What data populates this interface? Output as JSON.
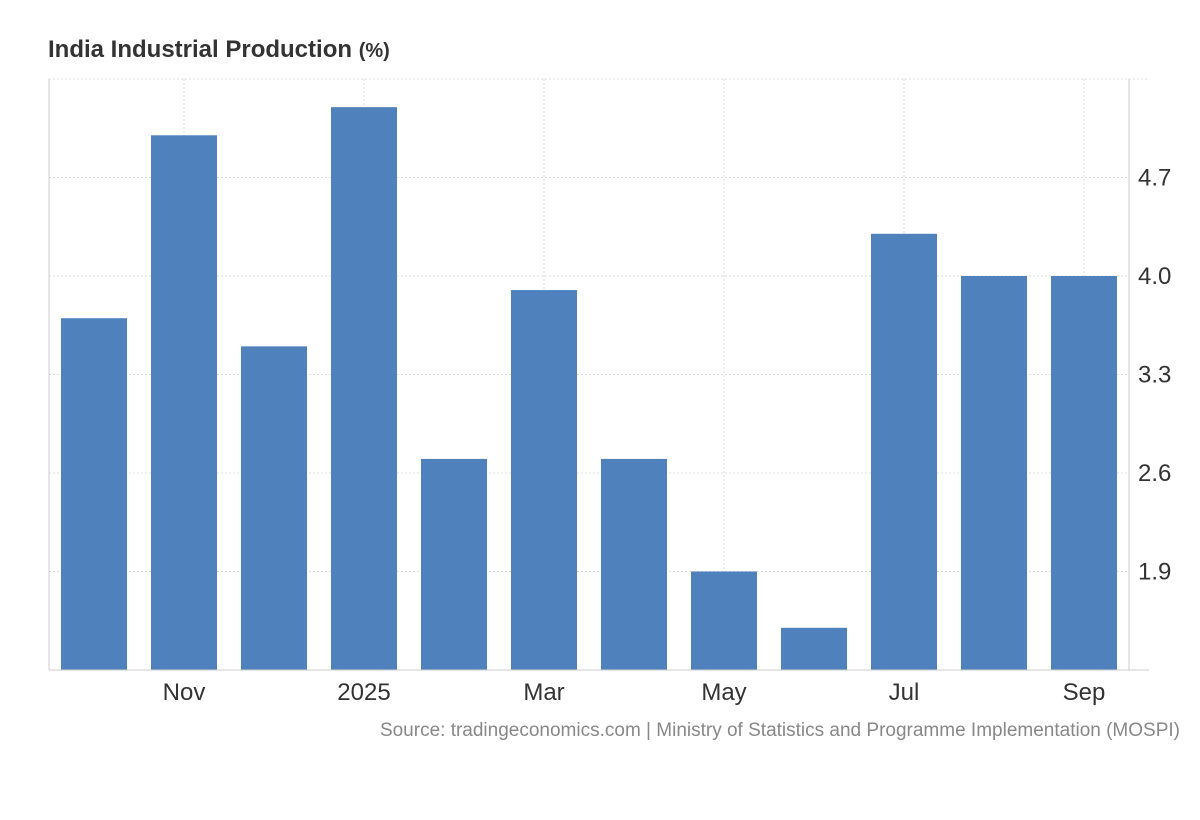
{
  "title": "India Industrial Production",
  "unit": "(%)",
  "source": "Source: tradingeconomics.com | Ministry of Statistics and Programme Implementation (MOSPI)",
  "colors": {
    "bar": "#4f81bd",
    "grid": "#dddddd",
    "axis": "#cccccc",
    "tick_text": "#333333"
  },
  "chart_data": {
    "type": "bar",
    "title": "India Industrial Production",
    "unit": "(%)",
    "categories": [
      "Oct 2024",
      "Nov 2024",
      "Dec 2024",
      "Jan 2025",
      "Feb 2025",
      "Mar 2025",
      "Apr 2025",
      "May 2025",
      "Jun 2025",
      "Jul 2025",
      "Aug 2025",
      "Sep 2025"
    ],
    "values": [
      3.7,
      5.0,
      3.5,
      5.2,
      2.7,
      3.9,
      2.7,
      1.9,
      1.5,
      4.3,
      4.0,
      4.0
    ],
    "x_tick_labels": [
      {
        "label": "Nov",
        "category": "Nov 2024"
      },
      {
        "label": "2025",
        "category": "Jan 2025"
      },
      {
        "label": "Mar",
        "category": "Mar 2025"
      },
      {
        "label": "May",
        "category": "May 2025"
      },
      {
        "label": "Jul",
        "category": "Jul 2025"
      },
      {
        "label": "Sep",
        "category": "Sep 2025"
      }
    ],
    "y_ticks": [
      1.9,
      2.6,
      3.3,
      4.0,
      4.7
    ],
    "y_tick_labels": [
      "1.9",
      "2.6",
      "3.3",
      "4.0",
      "4.7"
    ],
    "ylim": [
      1.2,
      5.4
    ],
    "y_axis_position": "right",
    "grid": true,
    "legend": "none"
  }
}
